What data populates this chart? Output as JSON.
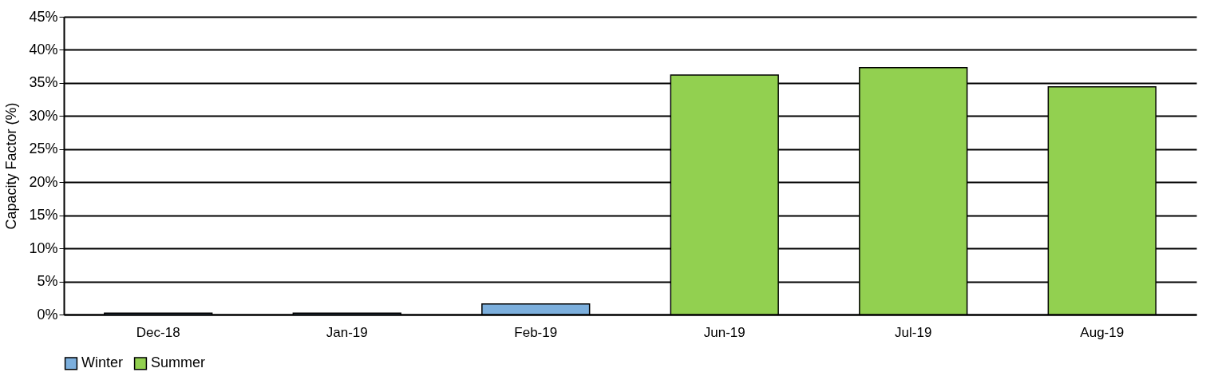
{
  "chart_data": {
    "type": "bar",
    "ylabel": "Capacity Factor (%)",
    "categories": [
      "Dec-18",
      "Jan-19",
      "Feb-19",
      "Jun-19",
      "Jul-19",
      "Aug-19"
    ],
    "series": [
      {
        "name": "Winter",
        "color": "#7cafdd",
        "values": [
          0.2,
          0.2,
          1.6,
          null,
          null,
          null
        ]
      },
      {
        "name": "Summer",
        "color": "#92d050",
        "values": [
          null,
          null,
          null,
          36.2,
          37.3,
          34.4
        ]
      }
    ],
    "ylim": [
      0,
      45
    ],
    "yticks": [
      {
        "value": 0,
        "label": "0%"
      },
      {
        "value": 5,
        "label": "5%"
      },
      {
        "value": 10,
        "label": "10%"
      },
      {
        "value": 15,
        "label": "15%"
      },
      {
        "value": 20,
        "label": "20%"
      },
      {
        "value": 25,
        "label": "25%"
      },
      {
        "value": 30,
        "label": "30%"
      },
      {
        "value": 35,
        "label": "35%"
      },
      {
        "value": 40,
        "label": "40%"
      },
      {
        "value": 45,
        "label": "45%"
      }
    ],
    "grid": "y",
    "legend": "bottom"
  }
}
